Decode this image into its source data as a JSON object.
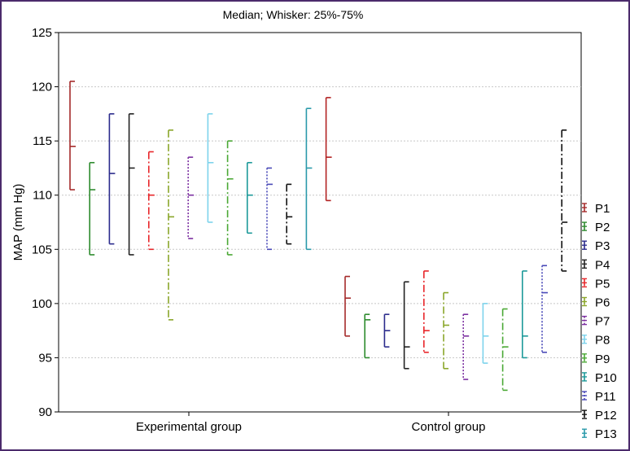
{
  "chart_data": {
    "type": "box",
    "title": "Median; Whisker: 25%-75%",
    "xlabel": "",
    "ylabel": "MAP (mm Hg)",
    "ylim": [
      90,
      125
    ],
    "yticks": [
      90,
      95,
      100,
      105,
      110,
      115,
      120,
      125
    ],
    "grid": true,
    "legend_position": "right",
    "categories": [
      "Experimental group",
      "Control group"
    ],
    "series": [
      {
        "name": "P1",
        "color": "#a52a2a",
        "dash": "solid",
        "values": [
          {
            "median": 114.5,
            "q1": 110.5,
            "q3": 120.5
          },
          {
            "median": 100.5,
            "q1": 97,
            "q3": 102.5
          }
        ]
      },
      {
        "name": "P2",
        "color": "#2e8b2e",
        "dash": "solid",
        "values": [
          {
            "median": 110.5,
            "q1": 104.5,
            "q3": 113
          },
          {
            "median": 98.5,
            "q1": 95,
            "q3": 99
          }
        ]
      },
      {
        "name": "P3",
        "color": "#2b2b8c",
        "dash": "solid",
        "values": [
          {
            "median": 112,
            "q1": 105.5,
            "q3": 117.5
          },
          {
            "median": 97.5,
            "q1": 96,
            "q3": 99
          }
        ]
      },
      {
        "name": "P4",
        "color": "#222222",
        "dash": "solid",
        "values": [
          {
            "median": 112.5,
            "q1": 104.5,
            "q3": 117.5
          },
          {
            "median": 96,
            "q1": 94,
            "q3": 102
          }
        ]
      },
      {
        "name": "P5",
        "color": "#e8262a",
        "dash": "dashdot",
        "values": [
          {
            "median": 110,
            "q1": 105,
            "q3": 114
          },
          {
            "median": 97.5,
            "q1": 95.5,
            "q3": 103
          }
        ]
      },
      {
        "name": "P6",
        "color": "#8aa62a",
        "dash": "dashdot",
        "values": [
          {
            "median": 108,
            "q1": 98.5,
            "q3": 116
          },
          {
            "median": 98,
            "q1": 94,
            "q3": 101
          }
        ]
      },
      {
        "name": "P7",
        "color": "#7b2fa0",
        "dash": "dotted",
        "values": [
          {
            "median": 110,
            "q1": 106,
            "q3": 113.5
          },
          {
            "median": 97,
            "q1": 93,
            "q3": 99
          }
        ]
      },
      {
        "name": "P8",
        "color": "#7dd3ec",
        "dash": "solid",
        "values": [
          {
            "median": 113,
            "q1": 107.5,
            "q3": 117.5
          },
          {
            "median": 97,
            "q1": 94.5,
            "q3": 100
          }
        ]
      },
      {
        "name": "P9",
        "color": "#4aa834",
        "dash": "dashdot",
        "values": [
          {
            "median": 111.5,
            "q1": 104.5,
            "q3": 115
          },
          {
            "median": 96,
            "q1": 92,
            "q3": 99.5
          }
        ]
      },
      {
        "name": "P10",
        "color": "#1d9a9a",
        "dash": "solid",
        "values": [
          {
            "median": 110,
            "q1": 106.5,
            "q3": 113
          },
          {
            "median": 97,
            "q1": 95,
            "q3": 103
          }
        ]
      },
      {
        "name": "P11",
        "color": "#4a4ab8",
        "dash": "dotted",
        "values": [
          {
            "median": 111,
            "q1": 105,
            "q3": 112.5
          },
          {
            "median": 101,
            "q1": 95.5,
            "q3": 103.5
          }
        ]
      },
      {
        "name": "P12",
        "color": "#111111",
        "dash": "dashdot",
        "values": [
          {
            "median": 108,
            "q1": 105.5,
            "q3": 111
          },
          {
            "median": 107.5,
            "q1": 103,
            "q3": 116
          }
        ]
      },
      {
        "name": "P13",
        "color": "#2a9aaa",
        "dash": "solid",
        "values": [
          {
            "median": 112.5,
            "q1": 105,
            "q3": 118
          },
          {
            "median": null,
            "q1": null,
            "q3": null
          }
        ]
      }
    ],
    "extra_series": [
      {
        "name": "",
        "color": "#b22222",
        "dash": "solid",
        "values": [
          {
            "median": 113.5,
            "q1": 109.5,
            "q3": 119
          },
          {
            "median": null,
            "q1": null,
            "q3": null
          }
        ]
      }
    ]
  }
}
